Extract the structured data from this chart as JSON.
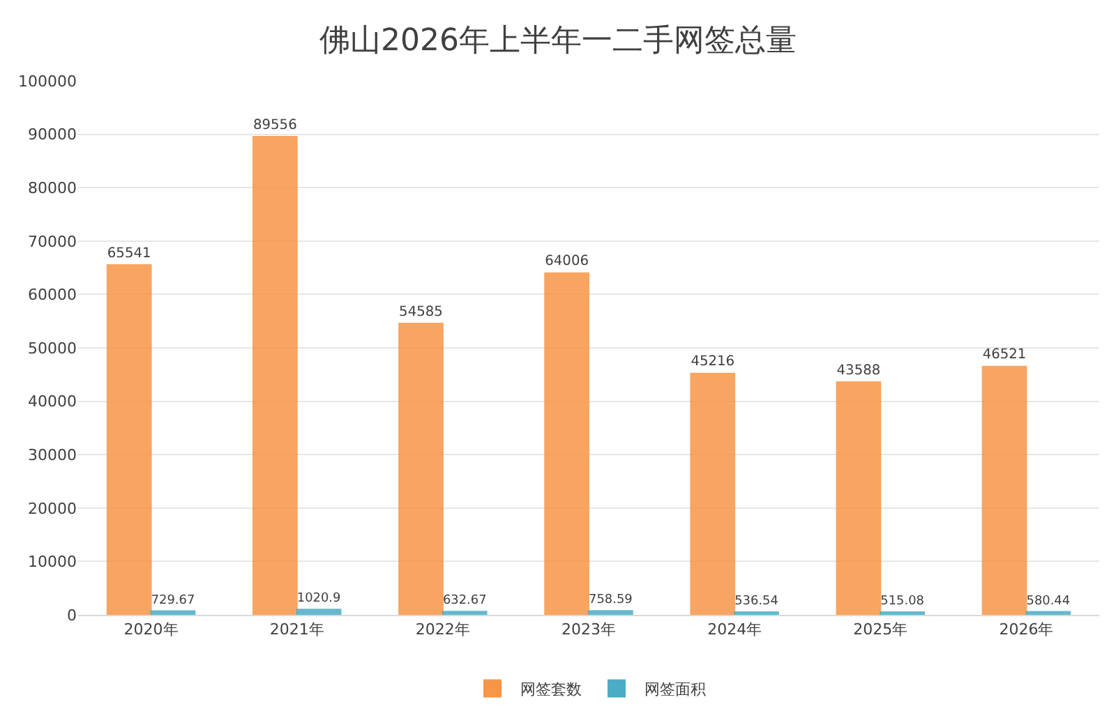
{
  "chart_data": {
    "type": "bar",
    "title": "佛山2026年上半年一二手网签总量",
    "categories": [
      "2020年",
      "2021年",
      "2022年",
      "2023年",
      "2024年",
      "2025年",
      "2026年"
    ],
    "series": [
      {
        "name": "网签套数",
        "color": "#f79646",
        "values": [
          65541,
          89556,
          54585,
          64006,
          45216,
          43588,
          46521
        ]
      },
      {
        "name": "网签面积",
        "color": "#4bacc6",
        "values": [
          729.67,
          1020.9,
          632.67,
          758.59,
          536.54,
          515.08,
          580.44
        ]
      }
    ],
    "ylim": [
      0,
      100000
    ],
    "yticks": [
      0,
      10000,
      20000,
      30000,
      40000,
      50000,
      60000,
      70000,
      80000,
      90000,
      100000
    ],
    "grid": "y",
    "legend": "bottom",
    "data_labels": true
  }
}
